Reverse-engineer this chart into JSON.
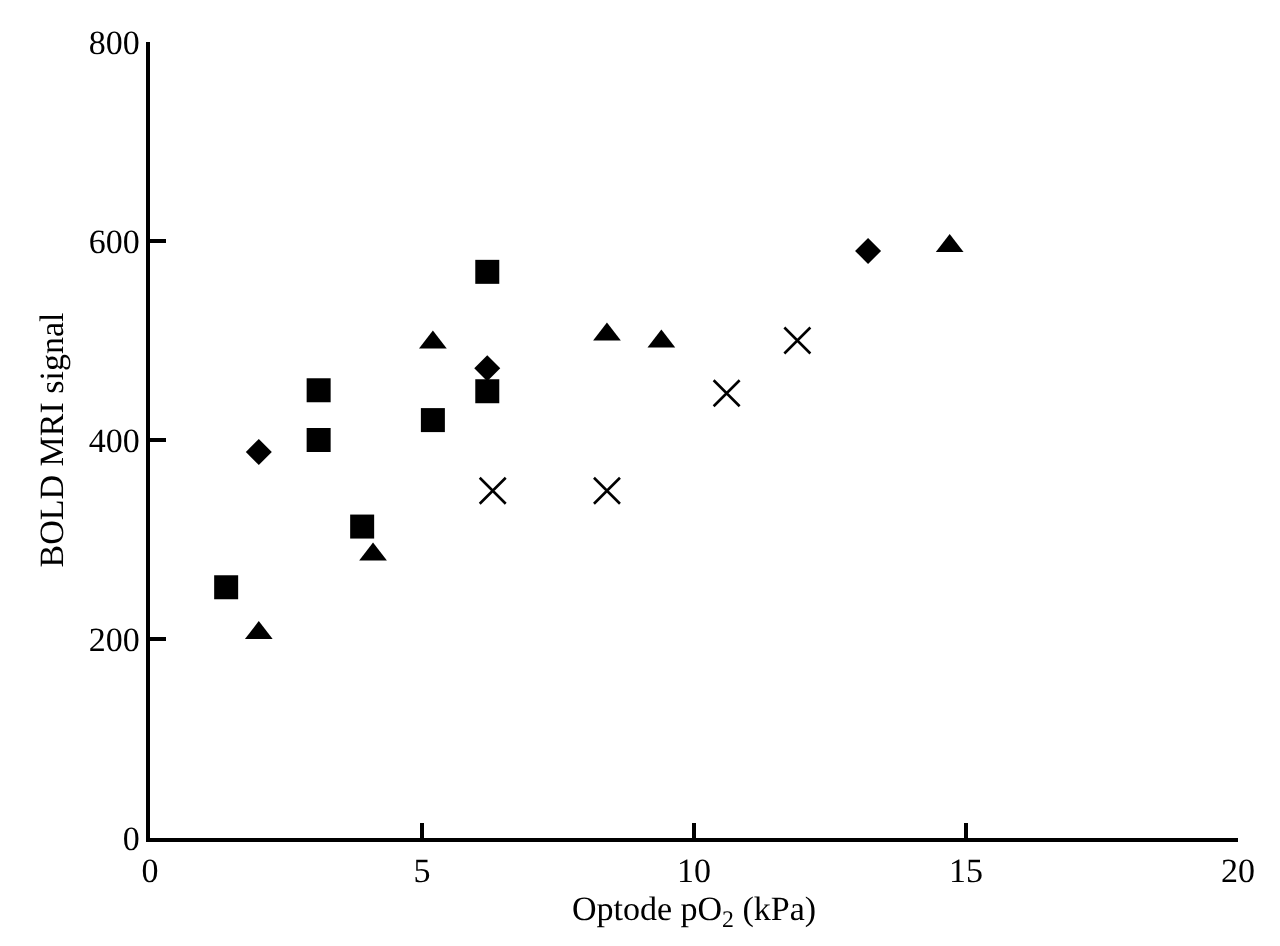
{
  "chart_data": {
    "type": "scatter",
    "xlabel": "Optode pO$_{2}$ (kPa)",
    "ylabel": "BOLD MRI signal",
    "xlim": [
      0,
      20
    ],
    "xticks": [
      0,
      5,
      10,
      15,
      20
    ],
    "ylim": [
      0,
      800
    ],
    "yticks": [
      0,
      200,
      400,
      600,
      800
    ],
    "series": [
      {
        "color": "#000000",
        "marker": "square",
        "x": [
          1.4,
          3.1,
          3.1,
          3.9,
          5.2,
          6.2,
          6.2
        ],
        "values": [
          252,
          450,
          400,
          313,
          420,
          569,
          449
        ]
      },
      {
        "color": "#000000",
        "marker": "diamond",
        "x": [
          2.0,
          6.2,
          13.2
        ],
        "values": [
          388,
          472,
          590
        ]
      },
      {
        "color": "#000000",
        "marker": "triangle",
        "x": [
          2.0,
          4.1,
          5.2,
          8.4,
          9.4,
          14.7
        ],
        "values": [
          206,
          285,
          498,
          506,
          499,
          595
        ]
      },
      {
        "color": "#000000",
        "marker": "cross",
        "x": [
          6.3,
          8.4,
          10.6,
          11.9
        ],
        "values": [
          349,
          349,
          447,
          500
        ]
      }
    ]
  }
}
